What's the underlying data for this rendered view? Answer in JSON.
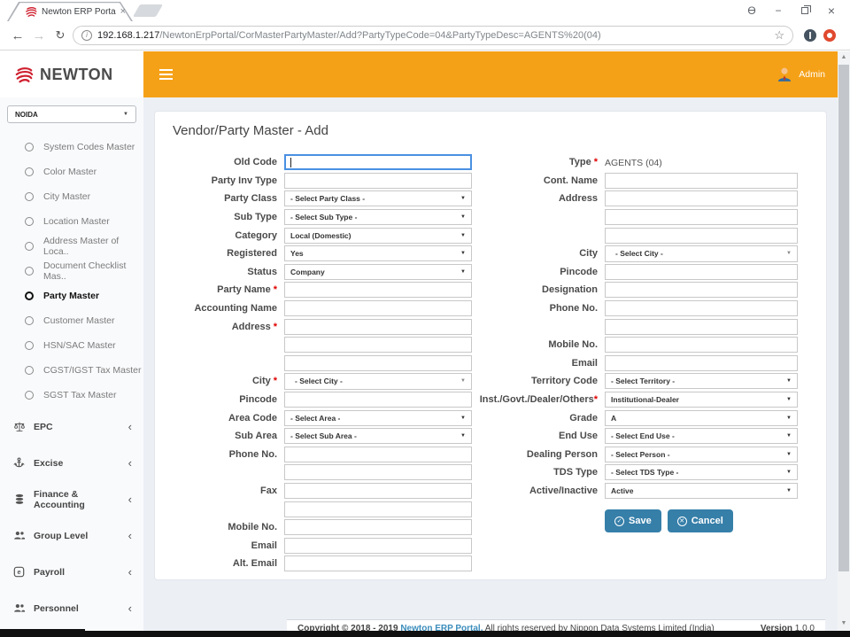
{
  "colors": {
    "header_orange": "#f5a118",
    "button_blue": "#367fa9",
    "link_blue": "#3c8dbc",
    "required_red": "#e00000",
    "focus_blue": "#4a90e2"
  },
  "icons": {
    "back": "←",
    "forward": "→",
    "reload": "↻",
    "info": "i",
    "star": "☆",
    "profile": "Ɵ",
    "minimize": "−",
    "close": "×",
    "tab_close": "×",
    "dropdown_arrow": "▼",
    "chevron_left": "‹",
    "scroll_up": "▲",
    "scroll_down": "▼",
    "save_check": "✓",
    "cancel_x": "✕"
  },
  "browser": {
    "tab_title": "Newton ERP Portal | Venc",
    "url_host": "192.168.1.217",
    "url_path": "/NewtonErpPortal/CorMasterPartyMaster/Add?PartyTypeCode=04&PartyTypeDesc=AGENTS%20(04)"
  },
  "header": {
    "brand": "NEWTON",
    "user": "Admin"
  },
  "sidebar": {
    "location": "NOIDA",
    "items": [
      {
        "label": "System Codes Master"
      },
      {
        "label": "Color Master"
      },
      {
        "label": "City Master"
      },
      {
        "label": "Location Master"
      },
      {
        "label": "Address Master of Loca.."
      },
      {
        "label": "Document Checklist Mas.."
      },
      {
        "label": "Party Master",
        "active": true
      },
      {
        "label": "Customer Master"
      },
      {
        "label": "HSN/SAC Master"
      },
      {
        "label": "CGST/IGST Tax Master"
      },
      {
        "label": "SGST Tax Master"
      }
    ],
    "sections": [
      {
        "label": "EPC",
        "icon": "balance-scale-icon"
      },
      {
        "label": "Excise",
        "icon": "anchor-icon"
      },
      {
        "label": "Finance & Accounting",
        "icon": "database-icon"
      },
      {
        "label": "Group Level",
        "icon": "users-icon"
      },
      {
        "label": "Payroll",
        "icon": "payroll-icon"
      },
      {
        "label": "Personnel",
        "icon": "users-icon"
      }
    ]
  },
  "page": {
    "title": "Vendor/Party Master - Add"
  },
  "form": {
    "left_rows": [
      {
        "label": "Old Code",
        "type": "text",
        "focused": true
      },
      {
        "label": "Party Inv Type",
        "type": "text"
      },
      {
        "label": "Party Class",
        "type": "select",
        "value": "- Select Party Class -"
      },
      {
        "label": "Sub Type",
        "type": "select",
        "value": "- Select Sub Type -"
      },
      {
        "label": "Category",
        "type": "select",
        "value": "Local (Domestic)"
      },
      {
        "label": "Registered",
        "type": "select",
        "value": "Yes"
      },
      {
        "label": "Status",
        "type": "select",
        "value": "Company"
      },
      {
        "label": "Party Name",
        "required": true,
        "type": "text"
      },
      {
        "label": "Accounting Name",
        "type": "text"
      },
      {
        "label": "Address",
        "required": true,
        "type": "text",
        "name": "address-line1"
      },
      {
        "label": "",
        "type": "text",
        "name": "address-line2"
      },
      {
        "label": "",
        "type": "text",
        "name": "address-line3"
      },
      {
        "label": "City",
        "required": true,
        "type": "select2",
        "value": "- Select City -"
      },
      {
        "label": "Pincode",
        "type": "text"
      },
      {
        "label": "Area Code",
        "type": "select",
        "value": "- Select Area -"
      },
      {
        "label": "Sub Area",
        "type": "select",
        "value": "- Select Sub Area -"
      },
      {
        "label": "Phone No.",
        "type": "text",
        "name": "phone-no-1"
      },
      {
        "label": "",
        "type": "text",
        "name": "phone-no-2"
      },
      {
        "label": "Fax",
        "type": "text",
        "name": "fax-1"
      },
      {
        "label": "",
        "type": "text",
        "name": "fax-2"
      },
      {
        "label": "Mobile No.",
        "type": "text"
      },
      {
        "label": "Email",
        "type": "text"
      },
      {
        "label": "Alt. Email",
        "type": "text"
      }
    ],
    "right_rows": [
      {
        "label": "Type",
        "required": true,
        "type": "static",
        "value": "AGENTS (04)"
      },
      {
        "label": "Cont. Name",
        "type": "text"
      },
      {
        "label": "Address",
        "type": "text",
        "name": "contact-address-line1"
      },
      {
        "label": "",
        "type": "text",
        "name": "contact-address-line2"
      },
      {
        "label": "",
        "type": "text",
        "name": "contact-address-line3"
      },
      {
        "label": "City",
        "type": "select2",
        "value": "- Select City -"
      },
      {
        "label": "Pincode",
        "type": "text"
      },
      {
        "label": "Designation",
        "type": "text"
      },
      {
        "label": "Phone No.",
        "type": "text",
        "name": "contact-phone-1"
      },
      {
        "label": "",
        "type": "text",
        "name": "contact-phone-2"
      },
      {
        "label": "Mobile No.",
        "type": "text"
      },
      {
        "label": "Email",
        "type": "text"
      },
      {
        "label": "Territory Code",
        "type": "select",
        "value": "- Select Territory -"
      },
      {
        "label": "Inst./Govt./Dealer/Others",
        "required": true,
        "tight": true,
        "type": "select",
        "value": "Institutional-Dealer"
      },
      {
        "label": "Grade",
        "type": "select",
        "value": "A"
      },
      {
        "label": "End Use",
        "type": "select",
        "value": "- Select End Use -"
      },
      {
        "label": "Dealing Person",
        "type": "select",
        "value": "- Select Person -"
      },
      {
        "label": "TDS Type",
        "type": "select",
        "value": "- Select TDS Type -"
      },
      {
        "label": "Active/Inactive",
        "type": "select",
        "value": "Active"
      }
    ],
    "save_label": "Save",
    "cancel_label": "Cancel"
  },
  "footer": {
    "copyright": "Copyright © 2018 - 2019",
    "link_text": "Newton ERP Portal.",
    "rights": "All rights reserved by Nippon Data Systems Limited (India)",
    "version_label": "Version",
    "version_value": "1.0.0"
  }
}
